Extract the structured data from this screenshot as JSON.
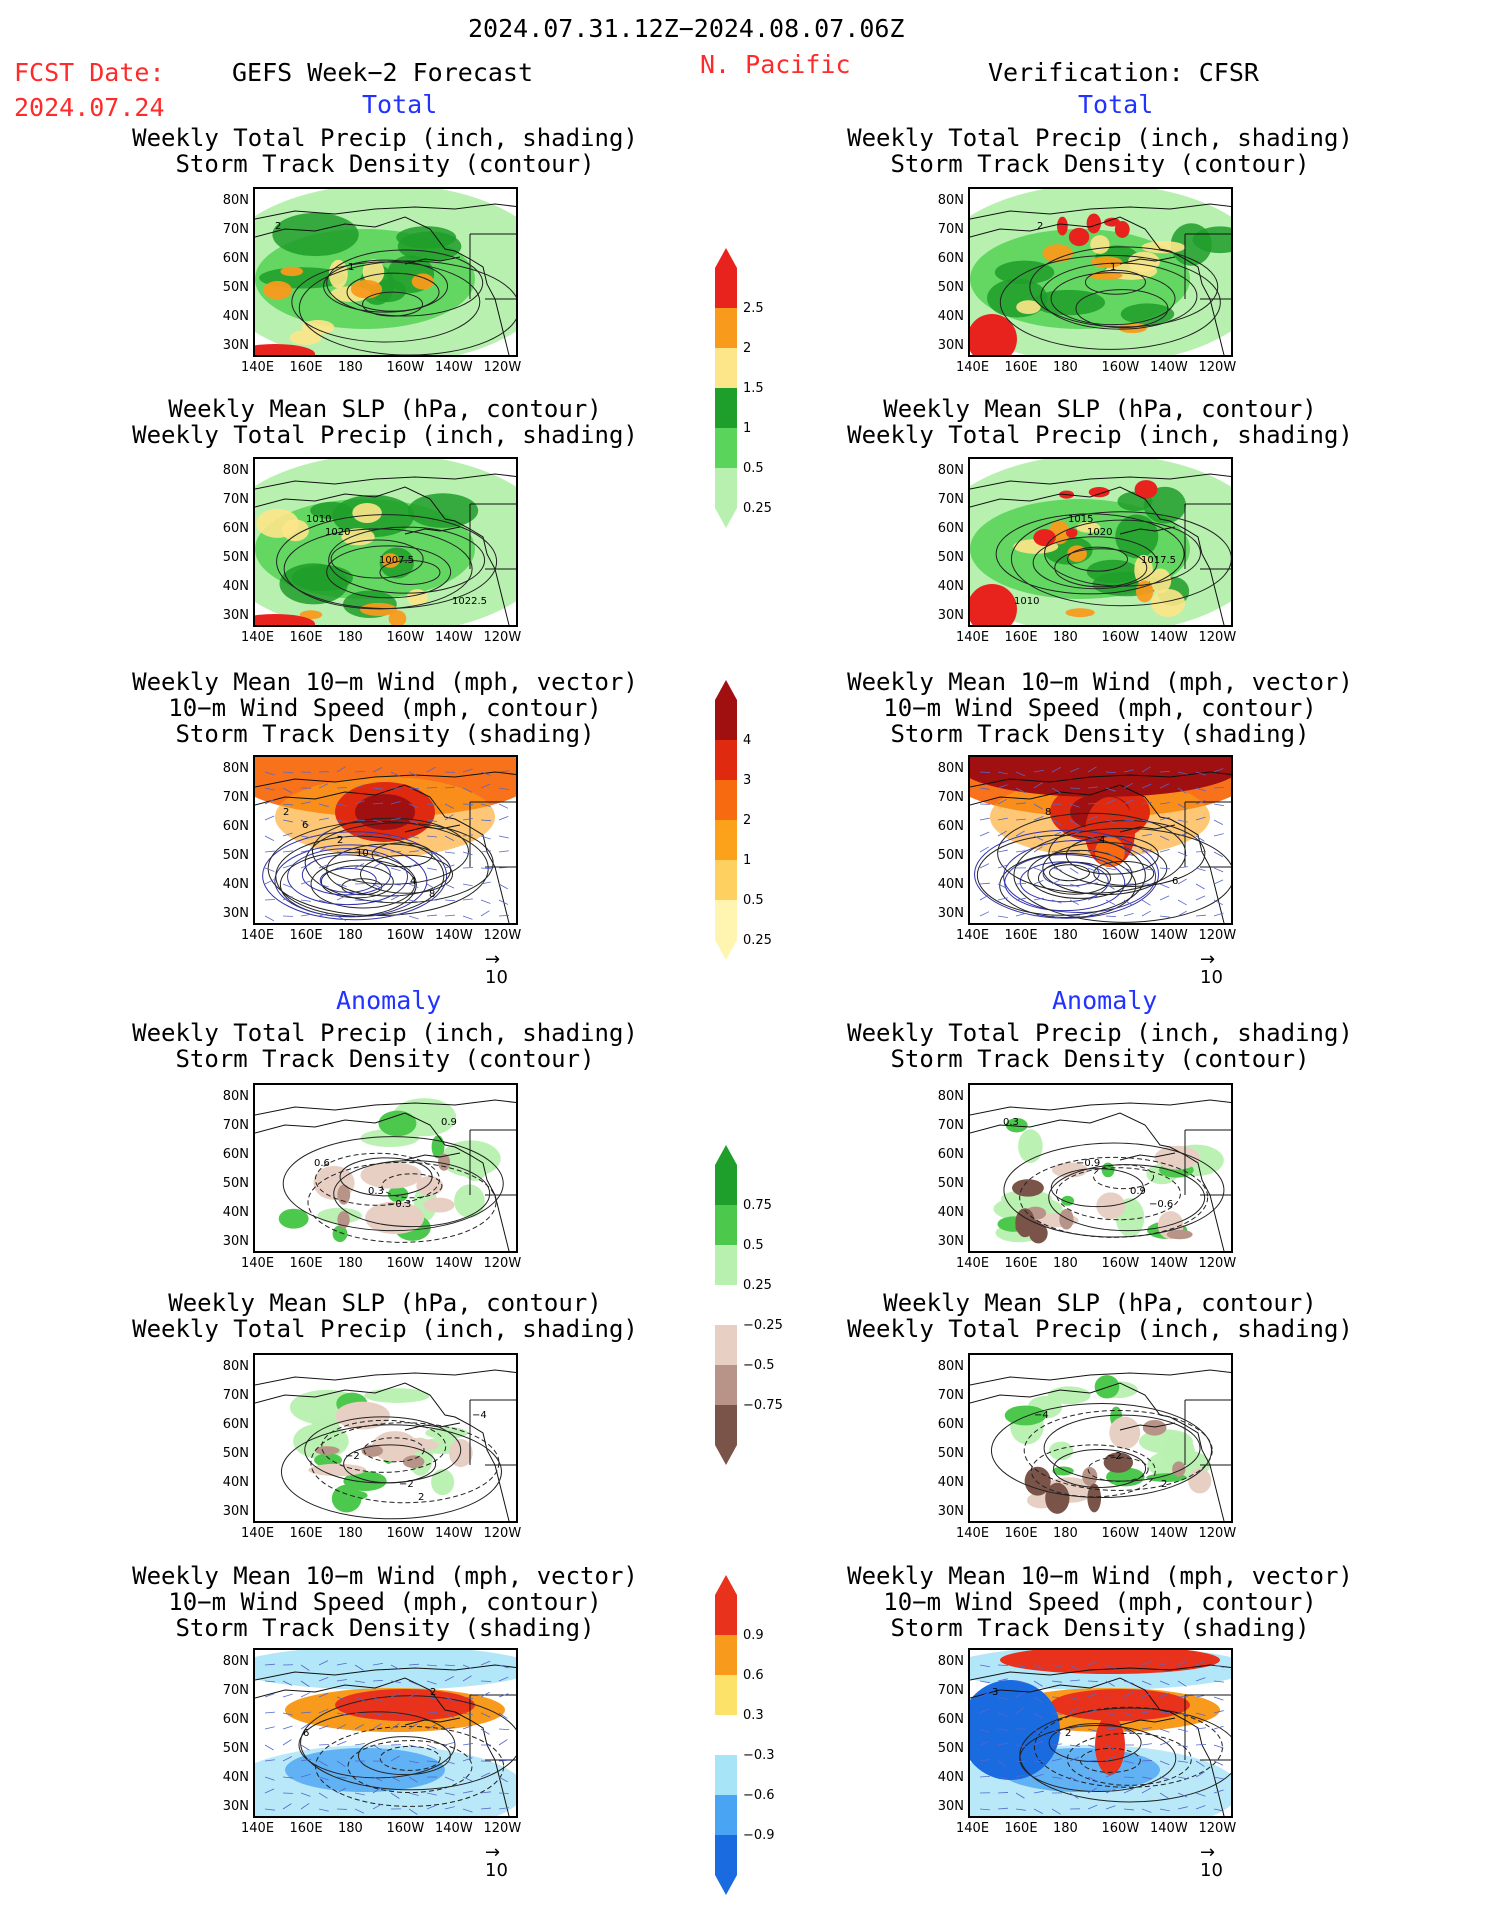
{
  "header": {
    "period": "2024.07.31.12Z−2024.08.07.06Z",
    "fcst_label": "FCST Date:",
    "fcst_date": "2024.07.24",
    "left_title": "GEFS Week−2 Forecast",
    "region": "N. Pacific",
    "right_title": "Verification: CFSR"
  },
  "sections": {
    "total": "Total",
    "anomaly": "Anomaly"
  },
  "panel_titles": {
    "precip_track": [
      "Weekly Total Precip (inch, shading)",
      "Storm Track Density (contour)"
    ],
    "slp_precip": [
      "Weekly Mean SLP (hPa, contour)",
      "Weekly Total Precip (inch, shading)"
    ],
    "wind_track": [
      "Weekly Mean 10−m Wind (mph, vector)",
      "10−m Wind Speed (mph, contour)",
      "Storm Track Density (shading)"
    ]
  },
  "axes": {
    "lat_labels": [
      "80N",
      "70N",
      "60N",
      "50N",
      "40N",
      "30N"
    ],
    "lon_labels": [
      "140E",
      "160E",
      "180",
      "160W",
      "140W",
      "120W"
    ]
  },
  "vector_ref": "10",
  "colorbars": {
    "precip_total": {
      "labels": [
        "2.5",
        "2",
        "1.5",
        "1",
        "0.5",
        "0.25"
      ],
      "colors": [
        "#e8221c",
        "#f89a1c",
        "#fde68a",
        "#1e9e2a",
        "#5ad45a",
        "#b8f0b0"
      ]
    },
    "track_total": {
      "labels": [
        "4",
        "3",
        "2",
        "1",
        "0.5",
        "0.25"
      ],
      "colors": [
        "#a01010",
        "#e02a10",
        "#f86a10",
        "#fba21a",
        "#fdd060",
        "#fff4b0"
      ]
    },
    "precip_anom": {
      "labels": [
        "0.75",
        "0.5",
        "0.25",
        "−0.25",
        "−0.5",
        "−0.75"
      ],
      "colors": [
        "#1e9e2a",
        "#4cc84c",
        "#b8f0b0",
        "#ffffff",
        "#e8cfc4",
        "#b89488",
        "#7a5448"
      ]
    },
    "track_anom": {
      "labels": [
        "0.9",
        "0.6",
        "0.3",
        "−0.3",
        "−0.6",
        "−0.9"
      ],
      "colors": [
        "#e8321c",
        "#f89a1c",
        "#fde26a",
        "#ffffff",
        "#a8e4f8",
        "#4aa4f4",
        "#1a6ae0"
      ]
    }
  },
  "contour_labels": {
    "fc_precip_track": [
      "2",
      "1"
    ],
    "fc_slp": [
      "1010",
      "1007.5",
      "1022.5",
      "1020"
    ],
    "fc_wind": [
      "2",
      "4",
      "2",
      "10",
      "8",
      "6"
    ],
    "ob_slp": [
      "1015",
      "1017.5",
      "1010",
      "1020"
    ],
    "ob_wind": [
      "4",
      "6",
      "8"
    ],
    "fc_anom_precip_track": [
      "0.3",
      "0.9",
      "0.6",
      "−0.3"
    ],
    "fc_anom_slp": [
      "−2",
      "−4",
      "−2",
      "2"
    ],
    "fc_anom_wind": [
      "2",
      "6"
    ],
    "ob_anom_precip_track": [
      "0.9",
      "0.3",
      "−0.9",
      "−0.6"
    ],
    "ob_anom_slp": [
      "2",
      "−4",
      "−2"
    ],
    "ob_anom_wind": [
      "3",
      "2"
    ]
  }
}
